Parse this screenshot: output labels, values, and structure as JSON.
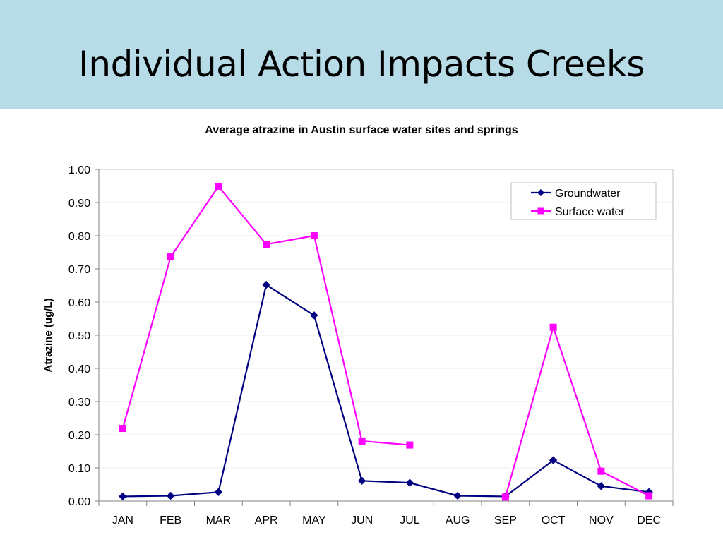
{
  "slide": {
    "title": "Individual Action Impacts Creeks"
  },
  "chart_data": {
    "type": "line",
    "title": "Average atrazine in Austin surface water sites and springs",
    "xlabel": "",
    "ylabel": "Atrazine (ug/L)",
    "categories": [
      "JAN",
      "FEB",
      "MAR",
      "APR",
      "MAY",
      "JUN",
      "JUL",
      "AUG",
      "SEP",
      "OCT",
      "NOV",
      "DEC"
    ],
    "ylim": [
      0,
      1.0
    ],
    "yticks": [
      "0.00",
      "0.10",
      "0.20",
      "0.30",
      "0.40",
      "0.50",
      "0.60",
      "0.70",
      "0.80",
      "0.90",
      "1.00"
    ],
    "grid": true,
    "legend": "top-right",
    "series": [
      {
        "name": "Groundwater",
        "color": "#000080",
        "marker": "diamond",
        "values": [
          0.014,
          0.016,
          0.027,
          0.652,
          0.56,
          0.061,
          0.055,
          0.016,
          0.014,
          0.123,
          0.045,
          0.027
        ]
      },
      {
        "name": "Surface water",
        "color": "#ff00ff",
        "marker": "square",
        "values": [
          0.219,
          0.736,
          0.949,
          0.774,
          0.8,
          0.181,
          0.169,
          null,
          0.012,
          0.524,
          0.09,
          0.016
        ]
      }
    ]
  }
}
